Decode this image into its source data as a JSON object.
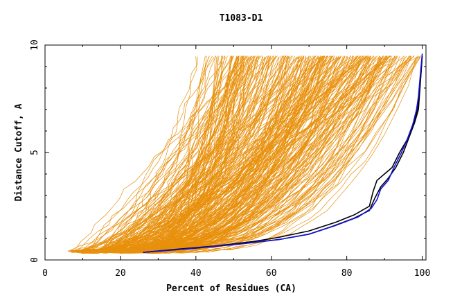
{
  "chart_data": {
    "type": "line",
    "title": "T1083-D1",
    "xlabel": "Percent of Residues (CA)",
    "ylabel": "Distance Cutoff, A",
    "xlim": [
      0,
      101
    ],
    "ylim": [
      0,
      10
    ],
    "x_ticks": [
      0,
      20,
      40,
      60,
      80,
      100
    ],
    "y_ticks": [
      0,
      5,
      10
    ],
    "y_tick_labels": [
      "0",
      "5",
      "10"
    ],
    "x_tick_labels": [
      "0",
      "20",
      "40",
      "60",
      "80",
      "100"
    ],
    "grid": false,
    "legend": "none",
    "colors": {
      "models": "#e8900c",
      "black": "#000000",
      "blue": "#1010e0",
      "axes": "#000000"
    },
    "background_model_count": 300,
    "series": [
      {
        "color": "#000000",
        "points": [
          [
            26,
            0.35
          ],
          [
            35,
            0.5
          ],
          [
            45,
            0.65
          ],
          [
            55,
            0.85
          ],
          [
            62,
            1.05
          ],
          [
            70,
            1.35
          ],
          [
            77,
            1.75
          ],
          [
            82,
            2.1
          ],
          [
            86,
            2.5
          ],
          [
            87,
            3.2
          ],
          [
            88,
            3.7
          ],
          [
            90,
            4.0
          ],
          [
            92,
            4.3
          ],
          [
            94,
            5.0
          ],
          [
            96,
            5.6
          ],
          [
            97.5,
            6.2
          ],
          [
            98.5,
            6.8
          ],
          [
            99,
            7.4
          ],
          [
            99.5,
            8.3
          ],
          [
            100,
            9.5
          ]
        ]
      },
      {
        "color": "#000000",
        "points": [
          [
            26,
            0.35
          ],
          [
            40,
            0.55
          ],
          [
            52,
            0.75
          ],
          [
            62,
            0.95
          ],
          [
            70,
            1.2
          ],
          [
            76,
            1.55
          ],
          [
            82,
            1.95
          ],
          [
            86,
            2.3
          ],
          [
            87.5,
            2.9
          ],
          [
            89,
            3.4
          ],
          [
            91,
            3.8
          ],
          [
            93,
            4.3
          ],
          [
            95,
            5.0
          ],
          [
            96.5,
            5.7
          ],
          [
            98,
            6.4
          ],
          [
            99,
            7.0
          ],
          [
            99.5,
            8.2
          ],
          [
            100,
            9.5
          ]
        ]
      },
      {
        "color": "#1010e0",
        "points": [
          [
            26,
            0.35
          ],
          [
            40,
            0.55
          ],
          [
            52,
            0.75
          ],
          [
            62,
            0.95
          ],
          [
            70,
            1.2
          ],
          [
            77,
            1.6
          ],
          [
            83,
            2.0
          ],
          [
            86.5,
            2.4
          ],
          [
            88,
            2.8
          ],
          [
            89,
            3.3
          ],
          [
            91,
            3.7
          ],
          [
            92.5,
            4.3
          ],
          [
            94.5,
            5.0
          ],
          [
            96,
            5.6
          ],
          [
            97.5,
            6.3
          ],
          [
            98.5,
            7.0
          ],
          [
            99,
            7.6
          ],
          [
            99.5,
            8.6
          ],
          [
            100,
            9.6
          ]
        ]
      }
    ]
  }
}
